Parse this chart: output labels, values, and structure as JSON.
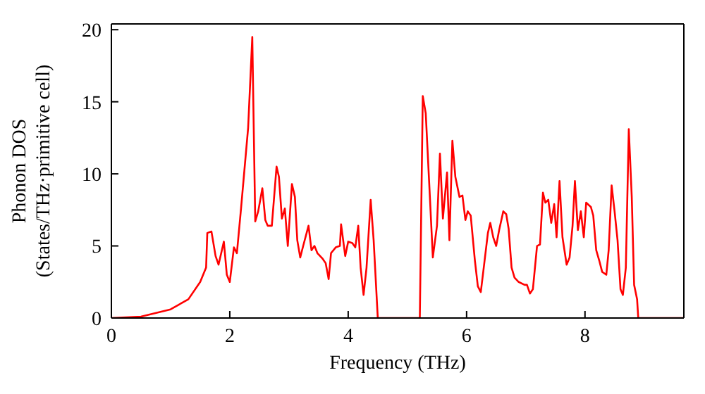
{
  "chart_data": {
    "type": "line",
    "xlabel": "Frequency (THz)",
    "ylabel": "Phonon DOS\n(States/THz·primitive cell)",
    "xlim": [
      0,
      9.67
    ],
    "ylim": [
      0,
      20.4
    ],
    "xticks": [
      0,
      2,
      4,
      6,
      8
    ],
    "yticks": [
      0,
      5,
      10,
      15,
      20
    ],
    "marker": "none",
    "line_style": "solid",
    "series": [
      {
        "color": "#ff0000",
        "x": [
          0,
          0.5,
          1.0,
          1.3,
          1.5,
          1.6,
          1.62,
          1.69,
          1.76,
          1.81,
          1.9,
          1.95,
          2.0,
          2.07,
          2.12,
          2.19,
          2.31,
          2.38,
          2.43,
          2.48,
          2.55,
          2.6,
          2.64,
          2.71,
          2.79,
          2.83,
          2.88,
          2.93,
          2.98,
          3.05,
          3.1,
          3.14,
          3.19,
          3.24,
          3.33,
          3.38,
          3.43,
          3.48,
          3.57,
          3.62,
          3.67,
          3.71,
          3.79,
          3.86,
          3.88,
          3.95,
          4.0,
          4.07,
          4.12,
          4.17,
          4.21,
          4.26,
          4.31,
          4.38,
          4.43,
          4.5,
          5.21,
          5.26,
          5.31,
          5.38,
          5.43,
          5.5,
          5.55,
          5.6,
          5.67,
          5.71,
          5.76,
          5.81,
          5.88,
          5.93,
          5.98,
          6.02,
          6.07,
          6.14,
          6.19,
          6.24,
          6.29,
          6.36,
          6.4,
          6.45,
          6.5,
          6.55,
          6.62,
          6.67,
          6.71,
          6.76,
          6.81,
          6.88,
          6.98,
          7.02,
          7.07,
          7.12,
          7.19,
          7.24,
          7.29,
          7.33,
          7.38,
          7.43,
          7.48,
          7.52,
          7.57,
          7.62,
          7.69,
          7.74,
          7.79,
          7.83,
          7.88,
          7.93,
          7.98,
          8.02,
          8.1,
          8.14,
          8.19,
          8.24,
          8.29,
          8.36,
          8.4,
          8.45,
          8.5,
          8.55,
          8.6,
          8.64,
          8.69,
          8.74,
          8.79,
          8.83,
          8.88,
          8.9,
          9.67
        ],
        "values": [
          0,
          0.1,
          0.6,
          1.3,
          2.5,
          3.5,
          5.9,
          6.0,
          4.3,
          3.7,
          5.3,
          3.0,
          2.5,
          4.9,
          4.5,
          7.6,
          13.2,
          19.5,
          6.7,
          7.4,
          9.0,
          6.8,
          6.4,
          6.4,
          10.5,
          9.8,
          6.9,
          7.6,
          5.0,
          9.3,
          8.4,
          5.4,
          4.2,
          5.0,
          6.4,
          4.7,
          5.0,
          4.5,
          4.1,
          3.8,
          2.7,
          4.5,
          4.9,
          5.0,
          6.5,
          4.3,
          5.3,
          5.2,
          4.9,
          6.4,
          3.5,
          1.6,
          3.5,
          8.2,
          5.4,
          0,
          0,
          15.4,
          14.2,
          8.4,
          4.2,
          6.4,
          11.4,
          6.9,
          10.1,
          5.4,
          12.3,
          9.8,
          8.4,
          8.5,
          6.8,
          7.4,
          7.1,
          4.0,
          2.2,
          1.8,
          3.5,
          5.9,
          6.6,
          5.6,
          5.0,
          6.1,
          7.4,
          7.2,
          6.2,
          3.5,
          2.8,
          2.5,
          2.3,
          2.3,
          1.7,
          2.0,
          5.0,
          5.1,
          8.7,
          8.0,
          8.2,
          6.6,
          7.9,
          5.6,
          9.5,
          5.6,
          3.7,
          4.2,
          6.4,
          9.5,
          6.1,
          7.4,
          5.6,
          8.0,
          7.7,
          7.1,
          4.7,
          4.0,
          3.2,
          3.0,
          4.7,
          9.2,
          7.4,
          5.4,
          2.0,
          1.6,
          3.5,
          13.1,
          8.4,
          2.3,
          1.3,
          0,
          0
        ]
      }
    ]
  }
}
